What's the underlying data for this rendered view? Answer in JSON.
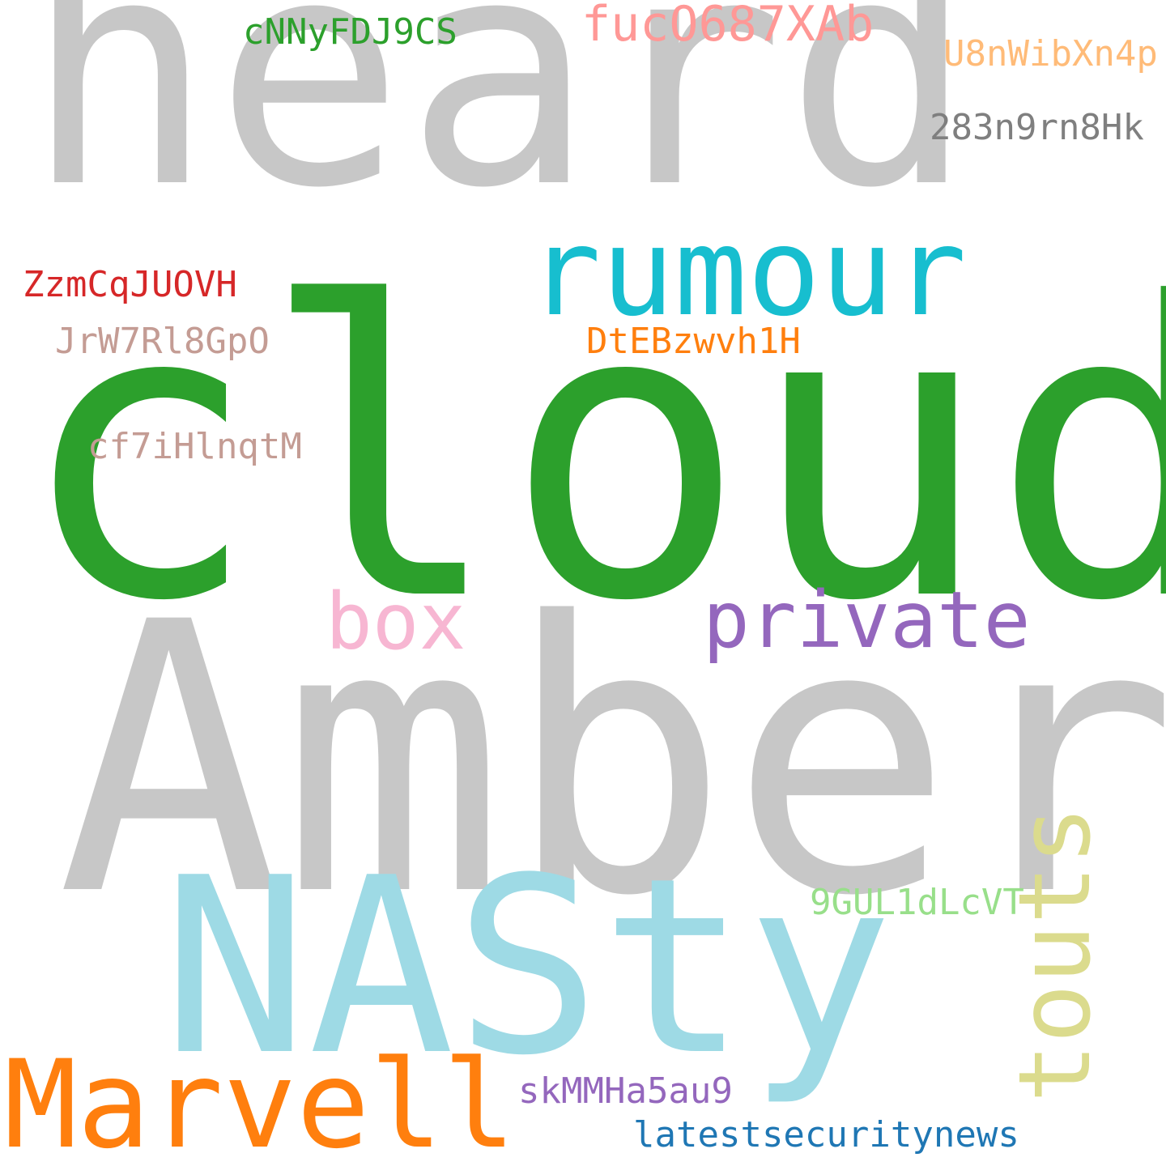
{
  "words": {
    "heard": {
      "text": "heard",
      "color": "#c7c7c7"
    },
    "cloud": {
      "text": "cloud",
      "color": "#2ca02c"
    },
    "amber": {
      "text": "Amber",
      "color": "#c7c7c7"
    },
    "nasty": {
      "text": "NASty",
      "color": "#9edae5"
    },
    "rumour": {
      "text": "rumour",
      "color": "#17becf"
    },
    "private": {
      "text": "private",
      "color": "#9467bd"
    },
    "box": {
      "text": "box",
      "color": "#f7b6d2"
    },
    "marvell": {
      "text": "Marvell",
      "color": "#ff7f0e"
    },
    "touts": {
      "text": "touts",
      "color": "#dbdb8d"
    },
    "fuc": {
      "text": "fucO687XAb",
      "color": "#ff9896"
    },
    "cnny": {
      "text": "cNNyFDJ9CS",
      "color": "#2ca02c"
    },
    "u8n": {
      "text": "U8nWibXn4p",
      "color": "#ffbb78"
    },
    "n283": {
      "text": "283n9rn8Hk",
      "color": "#7f7f7f"
    },
    "zzm": {
      "text": "ZzmCqJUOVH",
      "color": "#d62728"
    },
    "jrw": {
      "text": "JrW7Rl8GpO",
      "color": "#c49c94"
    },
    "dte": {
      "text": "DtEBzwvh1H",
      "color": "#ff7f0e"
    },
    "cf7": {
      "text": "cf7iHlnqtM",
      "color": "#c49c94"
    },
    "gul": {
      "text": "9GUL1dLcVT",
      "color": "#98df8a"
    },
    "skm": {
      "text": "skMMHa5au9",
      "color": "#9467bd"
    },
    "latest": {
      "text": "latestsecuritynews",
      "color": "#1f77b4"
    }
  }
}
